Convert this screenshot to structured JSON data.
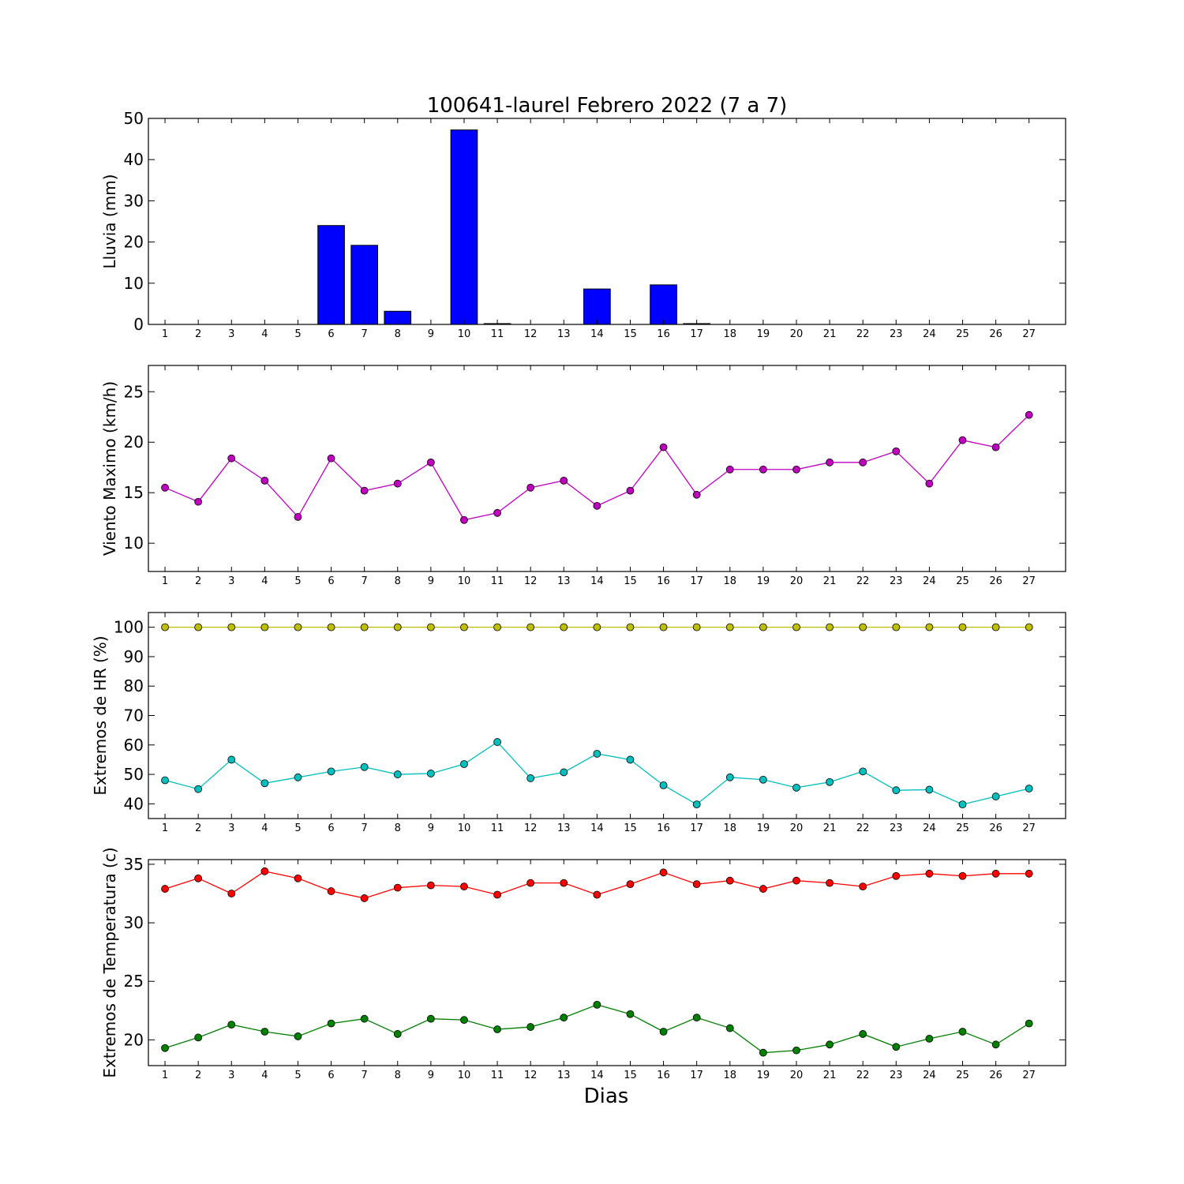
{
  "title": "100641-laurel Febrero 2022  (7 a 7)",
  "xlabel": "Dias",
  "chart_data": [
    {
      "type": "bar",
      "ylabel": "Lluvia (mm)",
      "ylim": [
        0,
        50
      ],
      "yticks": [
        0,
        10,
        20,
        30,
        40,
        50
      ],
      "categories": [
        1,
        2,
        3,
        4,
        5,
        6,
        7,
        8,
        9,
        10,
        11,
        12,
        13,
        14,
        15,
        16,
        17,
        18,
        19,
        20,
        21,
        22,
        23,
        24,
        25,
        26,
        27
      ],
      "series": [
        {
          "color": "#0000ff",
          "values": [
            0,
            0,
            0,
            0,
            0,
            24,
            19.2,
            3.2,
            0,
            47.2,
            0.2,
            0,
            0,
            8.6,
            0,
            9.6,
            0.2,
            0,
            0,
            0,
            0,
            0,
            0,
            0,
            0,
            0,
            0
          ]
        }
      ]
    },
    {
      "type": "line",
      "ylabel": "Viento Maximo (km/h)",
      "ylim": [
        7.2,
        27.6
      ],
      "yticks": [
        10,
        15,
        20,
        25
      ],
      "categories": [
        1,
        2,
        3,
        4,
        5,
        6,
        7,
        8,
        9,
        10,
        11,
        12,
        13,
        14,
        15,
        16,
        17,
        18,
        19,
        20,
        21,
        22,
        23,
        24,
        25,
        26,
        27
      ],
      "series": [
        {
          "color": "#bf00bf",
          "values": [
            15.5,
            14.1,
            18.4,
            16.2,
            12.6,
            18.4,
            15.2,
            15.9,
            18.0,
            12.3,
            13.0,
            15.5,
            16.2,
            13.7,
            15.2,
            19.5,
            14.8,
            17.3,
            17.3,
            17.3,
            18.0,
            18.0,
            19.1,
            15.9,
            20.2,
            19.5,
            22.7
          ]
        }
      ]
    },
    {
      "type": "line",
      "ylabel": "Extremos de HR (%)",
      "ylim": [
        35,
        105
      ],
      "yticks": [
        40,
        50,
        60,
        70,
        80,
        90,
        100
      ],
      "categories": [
        1,
        2,
        3,
        4,
        5,
        6,
        7,
        8,
        9,
        10,
        11,
        12,
        13,
        14,
        15,
        16,
        17,
        18,
        19,
        20,
        21,
        22,
        23,
        24,
        25,
        26,
        27
      ],
      "series": [
        {
          "color": "#bfbf00",
          "values": [
            100,
            100,
            100,
            100,
            100,
            100,
            100,
            100,
            100,
            100,
            100,
            100,
            100,
            100,
            100,
            100,
            100,
            100,
            100,
            100,
            100,
            100,
            100,
            100,
            100,
            100,
            100
          ]
        },
        {
          "color": "#00bfbf",
          "values": [
            48,
            45,
            55,
            47,
            49,
            51,
            52.5,
            50,
            50.3,
            53.5,
            61,
            48.7,
            50.7,
            57,
            55,
            46.3,
            39.8,
            49,
            48.2,
            45.5,
            47.4,
            51,
            44.6,
            44.8,
            39.8,
            42.5,
            45.2
          ]
        }
      ]
    },
    {
      "type": "line",
      "ylabel": "Extremos de Temperatura (c)",
      "ylim": [
        17.8,
        35.4
      ],
      "yticks": [
        20,
        25,
        30,
        35
      ],
      "categories": [
        1,
        2,
        3,
        4,
        5,
        6,
        7,
        8,
        9,
        10,
        11,
        12,
        13,
        14,
        15,
        16,
        17,
        18,
        19,
        20,
        21,
        22,
        23,
        24,
        25,
        26,
        27
      ],
      "series": [
        {
          "color": "#ff0000",
          "values": [
            32.9,
            33.8,
            32.5,
            34.4,
            33.8,
            32.7,
            32.1,
            33.0,
            33.2,
            33.1,
            32.4,
            33.4,
            33.4,
            32.4,
            33.3,
            34.3,
            33.3,
            33.6,
            32.9,
            33.6,
            33.4,
            33.1,
            34.0,
            34.2,
            34.0,
            34.2,
            34.2
          ]
        },
        {
          "color": "#008000",
          "values": [
            19.3,
            20.2,
            21.3,
            20.7,
            20.3,
            21.4,
            21.8,
            20.5,
            21.8,
            21.7,
            20.9,
            21.1,
            21.9,
            23.0,
            22.2,
            20.7,
            21.9,
            21.0,
            18.9,
            19.1,
            19.6,
            20.5,
            19.4,
            20.1,
            20.7,
            19.6,
            21.4
          ]
        }
      ]
    }
  ]
}
